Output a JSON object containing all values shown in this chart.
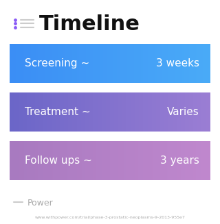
{
  "title": "Timeline",
  "title_fontsize": 22,
  "title_color": "#111111",
  "title_icon_color": "#8B5CF6",
  "background_color": "#ffffff",
  "bars": [
    {
      "label_left": "Screening ~",
      "label_right": "3 weeks",
      "color_left": "#3D8EF0",
      "color_right": "#4FA3F7",
      "gradient": [
        "#3B8FF5",
        "#3B8FF5"
      ]
    },
    {
      "label_left": "Treatment ~",
      "label_right": "Varies",
      "color_left": "#7B6BD0",
      "color_right": "#8B7FD4",
      "gradient": [
        "#6E6BC8",
        "#8B7CD4"
      ]
    },
    {
      "label_left": "Follow ups ~",
      "label_right": "3 years",
      "color_left": "#B07DC8",
      "color_right": "#B882C8",
      "gradient": [
        "#A87AC0",
        "#B882C8"
      ]
    }
  ],
  "bar_text_color": "#ffffff",
  "bar_text_fontsize": 11,
  "watermark": "Power",
  "watermark_color": "#aaaaaa",
  "url": "www.withpower.com/trial/phase-3-prostatic-neoplasms-9-2013-955e7",
  "url_color": "#aaaaaa"
}
